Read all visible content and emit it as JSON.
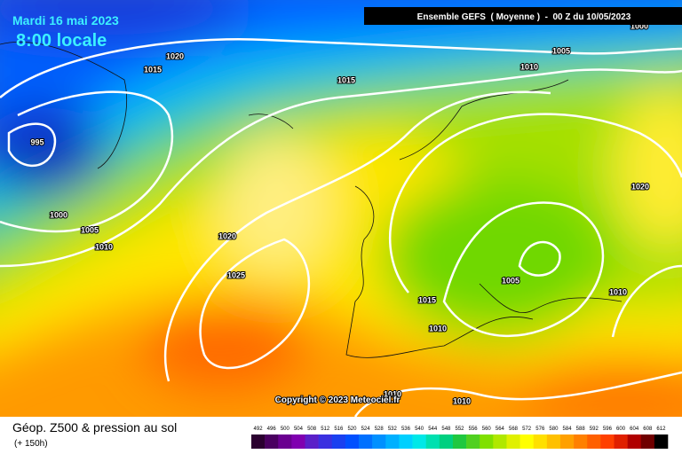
{
  "header": {
    "date": "Mardi 16 mai 2023",
    "time": "8:00 locale",
    "model": "Ensemble GEFS  ( Moyenne )  -  00 Z du 10/05/2023"
  },
  "isobar_labels": [
    1000,
    1020,
    1015,
    1005,
    1010,
    1015,
    995,
    1000,
    1005,
    1010,
    1020,
    1025,
    1020,
    1015,
    1010,
    1005,
    1010,
    1010,
    1010
  ],
  "copyright": "Copyright © 2023 Meteociel.fr",
  "footer": {
    "title": "Géop. Z500 & pression au sol",
    "lead": "(+ 150h)"
  },
  "legend": {
    "levels": [
      492,
      496,
      500,
      504,
      508,
      512,
      516,
      520,
      524,
      528,
      532,
      536,
      540,
      544,
      548,
      552,
      556,
      560,
      564,
      568,
      572,
      576,
      580,
      584,
      588,
      592,
      596,
      600,
      604,
      608,
      612
    ],
    "colors": [
      "#2b0030",
      "#4a0060",
      "#6a0090",
      "#8000b0",
      "#5a20c8",
      "#3a30e0",
      "#1a40f0",
      "#0050ff",
      "#0070ff",
      "#0090ff",
      "#00b0ff",
      "#00d0ff",
      "#00e8e8",
      "#00e0b0",
      "#00d080",
      "#20c840",
      "#50d020",
      "#80e000",
      "#b0e800",
      "#e0f000",
      "#ffff00",
      "#ffe000",
      "#ffc000",
      "#ffa000",
      "#ff8000",
      "#ff6000",
      "#ff4000",
      "#e02000",
      "#b00000",
      "#700000",
      "#000000"
    ]
  }
}
